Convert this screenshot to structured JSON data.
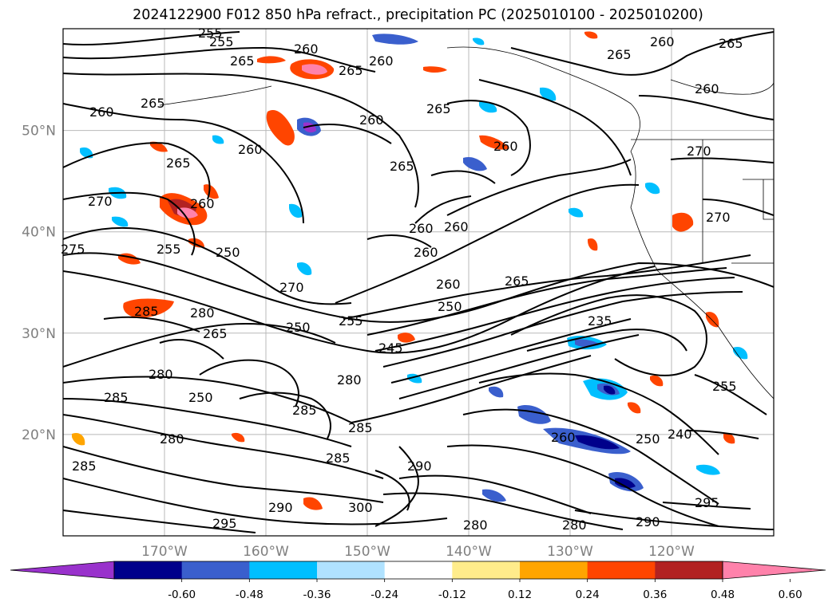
{
  "title": "2024122900 F012 850 hPa refract., precipitation PC (2025010100 - 2025010200)",
  "lat_labels": [
    {
      "text": "50°N",
      "lat": 50
    },
    {
      "text": "40°N",
      "lat": 40
    },
    {
      "text": "30°N",
      "lat": 30
    },
    {
      "text": "20°N",
      "lat": 20
    }
  ],
  "lon_labels": [
    {
      "text": "170°W",
      "lon": -170
    },
    {
      "text": "160°W",
      "lon": -160
    },
    {
      "text": "150°W",
      "lon": -150
    },
    {
      "text": "140°W",
      "lon": -140
    },
    {
      "text": "130°W",
      "lon": -130
    },
    {
      "text": "120°W",
      "lon": -120
    }
  ],
  "colorbar": {
    "colors": [
      "#9932cc",
      "#00008b",
      "#3a5fcd",
      "#00bfff",
      "#b0e2ff",
      "#ffffff",
      "#ffec8b",
      "#ffa500",
      "#ff4500",
      "#b22222",
      "#ff82ab"
    ],
    "ticks": [
      "-0.60",
      "-0.48",
      "-0.36",
      "-0.24",
      "-0.12",
      "0.12",
      "0.24",
      "0.36",
      "0.48",
      "0.60"
    ]
  },
  "contour_labels": [
    "255",
    "255",
    "260",
    "265",
    "260",
    "265",
    "260",
    "265",
    "265",
    "260",
    "265",
    "260",
    "260",
    "260",
    "265",
    "265",
    "260",
    "270",
    "260",
    "265",
    "270",
    "275",
    "255",
    "250",
    "260",
    "260",
    "260",
    "260",
    "250",
    "265",
    "270",
    "280",
    "285",
    "250",
    "255",
    "265",
    "235",
    "280",
    "245",
    "250",
    "285",
    "280",
    "285",
    "280",
    "285",
    "260",
    "250",
    "240",
    "290",
    "295",
    "290",
    "300",
    "290",
    "295",
    "280",
    "280",
    "255",
    "270",
    "285",
    "285"
  ]
}
